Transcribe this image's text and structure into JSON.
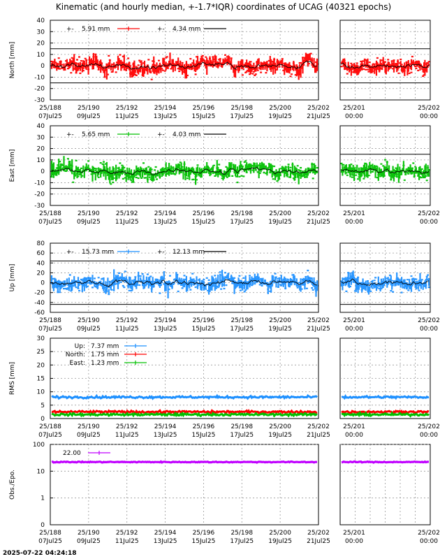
{
  "title": "Kinematic (and hourly median, +-1.7*IQR) coordinates of UCAG (40321 epochs)",
  "timestamp": "2025-07-22 04:24:18",
  "colors": {
    "north": "#ff0000",
    "east": "#00c000",
    "up": "#1e90ff",
    "obs": "#c000ff",
    "median": "#000000"
  },
  "chart_data": [
    {
      "id": "north",
      "type": "scatter",
      "ylabel": "North [mm]",
      "ylim": [
        -30,
        40
      ],
      "yticks": [
        "40",
        "30",
        "20",
        "10",
        "0",
        "-10",
        "-20",
        "-30"
      ],
      "threshold_lines": [
        15,
        -15
      ],
      "x_day_range": [
        188,
        202
      ],
      "legend": [
        {
          "prefix": "+-",
          "value": "5.91 mm",
          "color": "#ff0000"
        },
        {
          "prefix": "+-",
          "value": "4.34 mm",
          "color": "#000000"
        }
      ]
    },
    {
      "id": "east",
      "type": "scatter",
      "ylabel": "East [mm]",
      "ylim": [
        -30,
        40
      ],
      "yticks": [
        "40",
        "30",
        "20",
        "10",
        "0",
        "-10",
        "-20",
        "-30"
      ],
      "threshold_lines": [
        15,
        -15
      ],
      "x_day_range": [
        188,
        202
      ],
      "legend": [
        {
          "prefix": "+-",
          "value": "5.65 mm",
          "color": "#00c000"
        },
        {
          "prefix": "+-",
          "value": "4.03 mm",
          "color": "#000000"
        }
      ]
    },
    {
      "id": "up",
      "type": "scatter",
      "ylabel": "Up [mm]",
      "ylim": [
        -60,
        80
      ],
      "yticks": [
        "80",
        "60",
        "40",
        "20",
        "0",
        "-20",
        "-40",
        "-60"
      ],
      "threshold_lines": [
        44,
        -44
      ],
      "x_day_range": [
        188,
        202
      ],
      "legend": [
        {
          "prefix": "+-",
          "value": "15.73 mm",
          "color": "#1e90ff"
        },
        {
          "prefix": "+-",
          "value": "12.13 mm",
          "color": "#000000"
        }
      ]
    },
    {
      "id": "rms",
      "type": "line",
      "ylabel": "RMS [mm]",
      "ylim": [
        0,
        30
      ],
      "yticks": [
        "30",
        "25",
        "20",
        "15",
        "10",
        "5",
        "0"
      ],
      "x_day_range": [
        188,
        202
      ],
      "series": [
        {
          "name": "Up:",
          "value": "7.37 mm",
          "color": "#1e90ff",
          "level": 8
        },
        {
          "name": "North:",
          "value": "1.75 mm",
          "color": "#ff0000",
          "level": 2.5
        },
        {
          "name": "East:",
          "value": "1.23 mm",
          "color": "#00c000",
          "level": 1.5
        }
      ]
    },
    {
      "id": "obs",
      "type": "line",
      "ylabel": "Obs./Epo.",
      "ylim": [
        0,
        100
      ],
      "log_scale": true,
      "yticks": [
        "100",
        "10",
        "1",
        "0"
      ],
      "x_day_range": [
        188,
        202
      ],
      "series": [
        {
          "name": "",
          "value": "22.00",
          "color": "#c000ff",
          "level": 22
        }
      ]
    }
  ],
  "x_axis_left": {
    "days": [
      "25/188",
      "25/190",
      "25/192",
      "25/194",
      "25/196",
      "25/198",
      "25/200",
      "25/202"
    ],
    "dates": [
      "07Jul25",
      "09Jul25",
      "11Jul25",
      "13Jul25",
      "15Jul25",
      "17Jul25",
      "19Jul25",
      "21Jul25"
    ]
  },
  "x_axis_right": {
    "days": [
      "25/201",
      "25/202"
    ],
    "times": [
      "00:00",
      "00:00"
    ]
  }
}
